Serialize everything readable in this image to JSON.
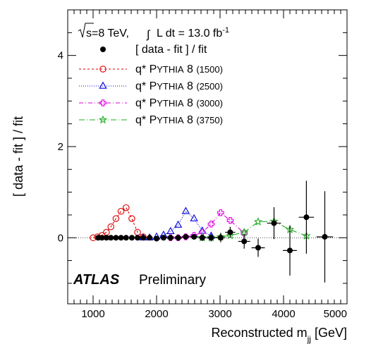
{
  "chart_data": {
    "type": "scatter",
    "xlabel": "Reconstructed m",
    "xlabel_sub": "jj",
    "xlabel_unit": "[GeV]",
    "ylabel": "[ data - fit ] / fit",
    "xlim": [
      600,
      5000
    ],
    "ylim": [
      -1.45,
      5.0
    ],
    "x_ticks": [
      1000,
      2000,
      3000,
      4000,
      5000
    ],
    "y_ticks": [
      0,
      2,
      4
    ],
    "x_tick_labels": [
      "1000",
      "2000",
      "3000",
      "4000",
      "5000"
    ],
    "y_tick_labels": [
      "0",
      "2",
      "4"
    ],
    "header": {
      "sqrt_s": "s=8 TeV,",
      "lumi_prefix": "L dt = 13.0 fb",
      "lumi_exp": "-1"
    },
    "atlas_label": "ATLAS",
    "atlas_sublabel": "Preliminary",
    "data_series": {
      "name": "[ data - fit ] / fit",
      "color": "#000000",
      "points": [
        {
          "x": 1080,
          "y": 0.0,
          "xerr": 30,
          "yerr": 0.02
        },
        {
          "x": 1140,
          "y": 0.0,
          "xerr": 30,
          "yerr": 0.02
        },
        {
          "x": 1210,
          "y": 0.0,
          "xerr": 35,
          "yerr": 0.02
        },
        {
          "x": 1280,
          "y": 0.0,
          "xerr": 35,
          "yerr": 0.02
        },
        {
          "x": 1360,
          "y": 0.0,
          "xerr": 40,
          "yerr": 0.02
        },
        {
          "x": 1440,
          "y": 0.0,
          "xerr": 40,
          "yerr": 0.02
        },
        {
          "x": 1520,
          "y": 0.0,
          "xerr": 40,
          "yerr": 0.02
        },
        {
          "x": 1610,
          "y": 0.0,
          "xerr": 45,
          "yerr": 0.02
        },
        {
          "x": 1700,
          "y": 0.0,
          "xerr": 45,
          "yerr": 0.03
        },
        {
          "x": 1790,
          "y": 0.0,
          "xerr": 45,
          "yerr": 0.03
        },
        {
          "x": 1890,
          "y": 0.0,
          "xerr": 50,
          "yerr": 0.03
        },
        {
          "x": 2000,
          "y": -0.02,
          "xerr": 50,
          "yerr": 0.03
        },
        {
          "x": 2110,
          "y": 0.0,
          "xerr": 55,
          "yerr": 0.04
        },
        {
          "x": 2220,
          "y": 0.0,
          "xerr": 55,
          "yerr": 0.04
        },
        {
          "x": 2340,
          "y": 0.0,
          "xerr": 60,
          "yerr": 0.05
        },
        {
          "x": 2460,
          "y": 0.02,
          "xerr": 60,
          "yerr": 0.05
        },
        {
          "x": 2590,
          "y": 0.02,
          "xerr": 65,
          "yerr": 0.06
        },
        {
          "x": 2720,
          "y": 0.0,
          "xerr": 65,
          "yerr": 0.07
        },
        {
          "x": 2860,
          "y": 0.0,
          "xerr": 70,
          "yerr": 0.08
        },
        {
          "x": 3010,
          "y": 0.0,
          "xerr": 75,
          "yerr": 0.1
        },
        {
          "x": 3160,
          "y": 0.12,
          "xerr": 80,
          "yerr": 0.12
        },
        {
          "x": 3380,
          "y": -0.08,
          "xerr": 95,
          "yerr": 0.16
        },
        {
          "x": 3600,
          "y": -0.22,
          "xerr": 105,
          "yerr": 0.2
        },
        {
          "x": 3850,
          "y": 0.32,
          "xerr": 110,
          "yerr": 0.35
        },
        {
          "x": 4100,
          "y": -0.28,
          "xerr": 110,
          "yerr": 0.55
        },
        {
          "x": 4360,
          "y": 0.45,
          "xerr": 120,
          "yerr": 0.8
        },
        {
          "x": 4650,
          "y": 0.02,
          "xerr": 130,
          "yerr": 1.0
        }
      ]
    },
    "series": [
      {
        "name": "q* PYTHIA 8",
        "mass_label": "(1500)",
        "color": "#dd0000",
        "marker": "circle",
        "dash": "3,3",
        "x": [
          1000,
          1070,
          1140,
          1210,
          1280,
          1360,
          1440,
          1520,
          1610,
          1700,
          1790
        ],
        "y": [
          0.0,
          0.02,
          0.05,
          0.12,
          0.24,
          0.42,
          0.58,
          0.66,
          0.42,
          0.12,
          0.02
        ]
      },
      {
        "name": "q* PYTHIA 8",
        "mass_label": "(2500)",
        "color": "#0000dd",
        "marker": "triangle",
        "dash": "1,2",
        "x": [
          1790,
          1890,
          2000,
          2110,
          2220,
          2340,
          2460,
          2590,
          2720,
          2860
        ],
        "y": [
          0.0,
          0.0,
          0.02,
          0.06,
          0.14,
          0.28,
          0.58,
          0.42,
          0.15,
          0.04
        ]
      },
      {
        "name": "q* PYTHIA 8",
        "mass_label": "(3000)",
        "color": "#dd00dd",
        "marker": "cross",
        "dash": "6,3,1,3",
        "x": [
          2220,
          2340,
          2460,
          2590,
          2720,
          2860,
          3010,
          3160,
          3380
        ],
        "y": [
          0.0,
          0.0,
          0.02,
          0.05,
          0.12,
          0.3,
          0.55,
          0.38,
          0.1
        ]
      },
      {
        "name": "q* PYTHIA 8",
        "mass_label": "(3750)",
        "color": "#22aa22",
        "marker": "star",
        "dash": "8,3,1,3",
        "x": [
          2720,
          2860,
          3010,
          3160,
          3380,
          3600,
          3850,
          4100,
          4360
        ],
        "y": [
          0.0,
          0.0,
          0.02,
          0.05,
          0.12,
          0.35,
          0.36,
          0.18,
          0.04
        ]
      }
    ]
  }
}
